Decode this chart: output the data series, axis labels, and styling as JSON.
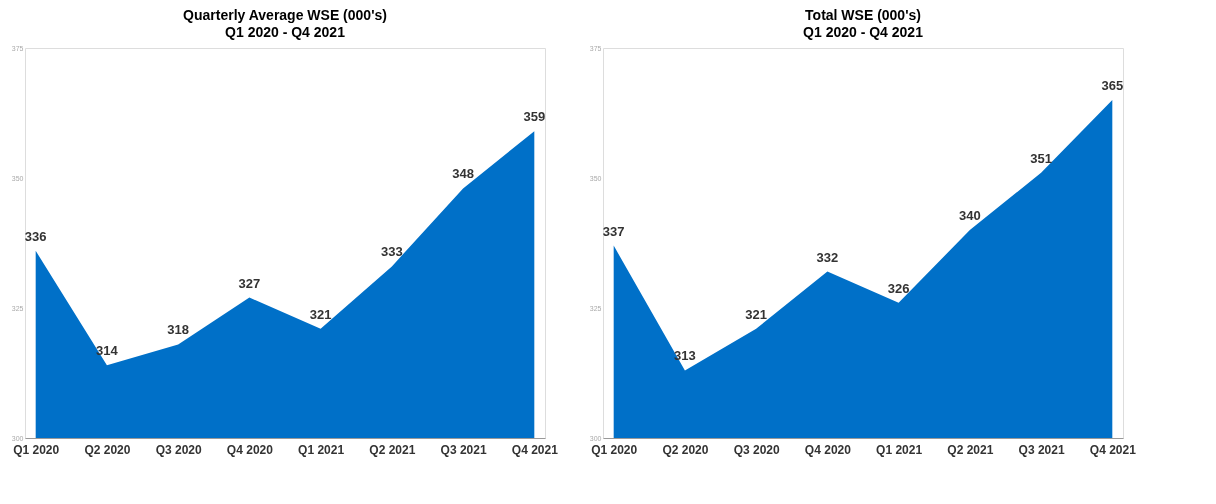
{
  "chart_data": [
    {
      "type": "area",
      "title": "Quarterly Average WSE (000's)",
      "subtitle": "Q1 2020 - Q4 2021",
      "categories": [
        "Q1 2020",
        "Q2 2020",
        "Q3 2020",
        "Q4 2020",
        "Q1 2021",
        "Q2 2021",
        "Q3 2021",
        "Q4 2021"
      ],
      "series": [
        {
          "color": "#0070c8",
          "values": [
            336,
            314,
            318,
            327,
            321,
            333,
            348,
            359
          ]
        }
      ],
      "ylim": [
        300,
        375
      ],
      "yticks": [
        300,
        325,
        350,
        375
      ],
      "data_labels": true,
      "grid": false
    },
    {
      "type": "area",
      "title": "Total WSE (000's)",
      "subtitle": "Q1 2020 - Q4 2021",
      "categories": [
        "Q1 2020",
        "Q2 2020",
        "Q3 2020",
        "Q4 2020",
        "Q1 2021",
        "Q2 2021",
        "Q3 2021",
        "Q4 2021"
      ],
      "series": [
        {
          "color": "#0070c8",
          "values": [
            337,
            313,
            321,
            332,
            326,
            340,
            351,
            365
          ]
        }
      ],
      "ylim": [
        300,
        375
      ],
      "yticks": [
        300,
        325,
        350,
        375
      ],
      "data_labels": true,
      "grid": false
    }
  ]
}
